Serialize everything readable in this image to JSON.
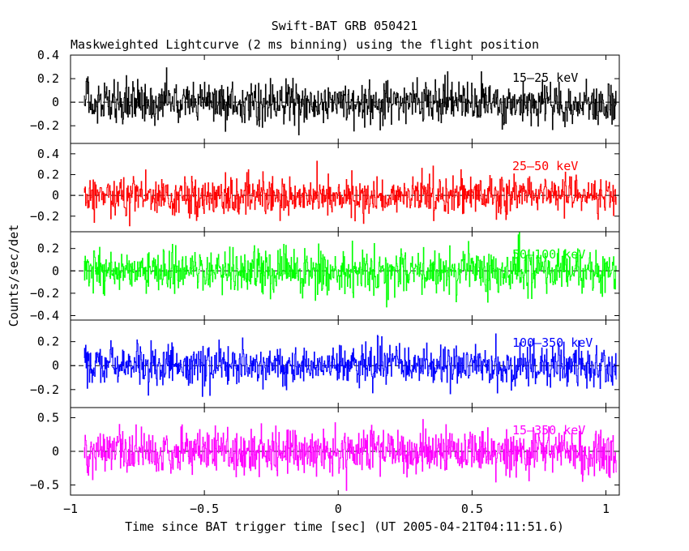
{
  "chart_data": {
    "type": "line",
    "title": "Swift-BAT GRB 050421",
    "subtitle": "Maskweighted Lightcurve (2 ms binning) using the flight position",
    "xlabel": "Time since BAT trigger time [sec] (UT 2005-04-21T04:11:51.6)",
    "ylabel": "Counts/sec/det",
    "xlim": [
      -1.0,
      1.05
    ],
    "data_x_range": [
      -0.95,
      1.04
    ],
    "bin_width_sec": 0.002,
    "x_ticks": [
      -1,
      -0.5,
      0,
      0.5,
      1
    ],
    "x_tick_labels": [
      "−1",
      "−0.5",
      "0",
      "0.5",
      "1"
    ],
    "grid": false,
    "panels": [
      {
        "band": "15–25 keV",
        "color": "#000000",
        "ylim": [
          -0.35,
          0.4
        ],
        "y_ticks": [
          -0.2,
          0,
          0.2,
          0.4
        ],
        "y_tick_labels": [
          "−0.2",
          "0",
          "0.2",
          "0.4"
        ],
        "noise_sd": 0.09
      },
      {
        "band": "25–50 keV",
        "color": "#ff0000",
        "ylim": [
          -0.35,
          0.5
        ],
        "y_ticks": [
          -0.2,
          0,
          0.2,
          0.4
        ],
        "y_tick_labels": [
          "−0.2",
          "0",
          "0.2",
          "0.4"
        ],
        "noise_sd": 0.09
      },
      {
        "band": "50–100 keV",
        "color": "#00ff00",
        "ylim": [
          -0.44,
          0.35
        ],
        "y_ticks": [
          -0.4,
          -0.2,
          0,
          0.2
        ],
        "y_tick_labels": [
          "−0.4",
          "−0.2",
          "0",
          "0.2"
        ],
        "noise_sd": 0.1
      },
      {
        "band": "100–350 keV",
        "color": "#0000ff",
        "ylim": [
          -0.35,
          0.38
        ],
        "y_ticks": [
          -0.2,
          0,
          0.2
        ],
        "y_tick_labels": [
          "−0.2",
          "0",
          "0.2"
        ],
        "noise_sd": 0.085
      },
      {
        "band": "15–350 keV",
        "color": "#ff00ff",
        "ylim": [
          -0.65,
          0.65
        ],
        "y_ticks": [
          -0.5,
          0,
          0.5
        ],
        "y_tick_labels": [
          "−0.5",
          "0",
          "0.5"
        ],
        "noise_sd": 0.17
      }
    ]
  }
}
